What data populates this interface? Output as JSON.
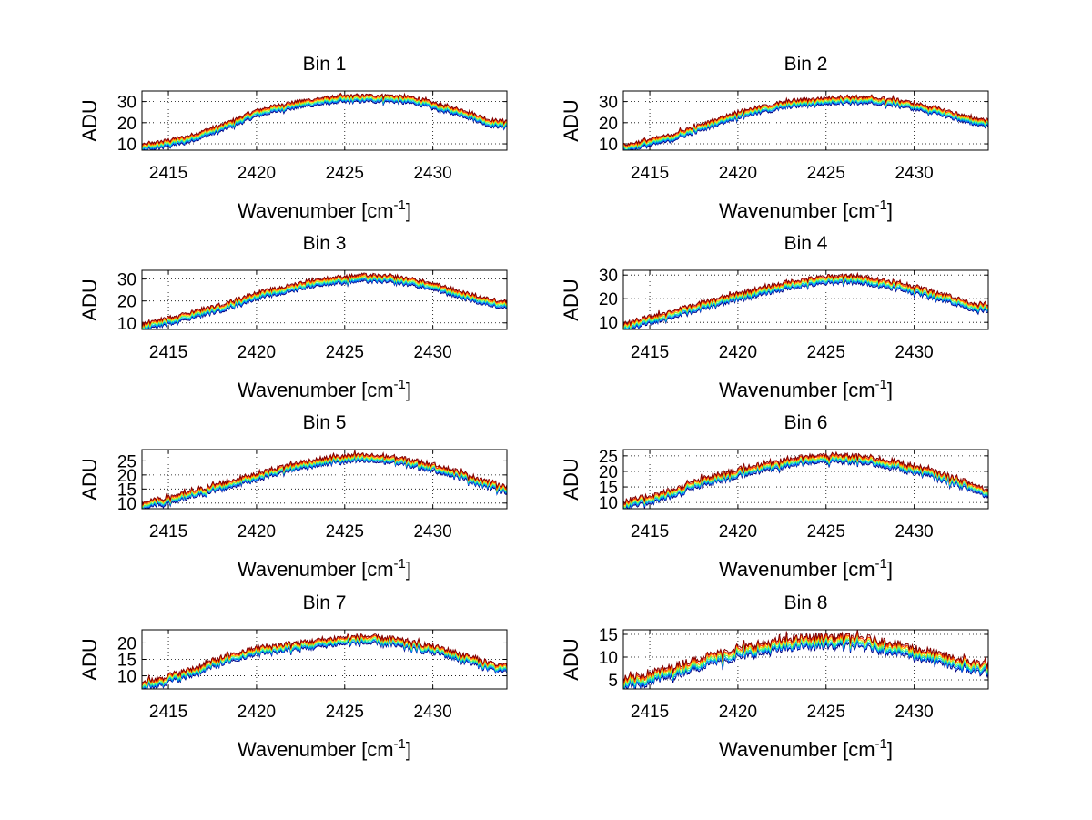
{
  "figure": {
    "background": "#ffffff",
    "series_colors": [
      "#000080",
      "#0066ff",
      "#00cccc",
      "#66ff66",
      "#ffcc00",
      "#ff3300",
      "#800000"
    ]
  },
  "chart_data": [
    {
      "type": "line",
      "title": "Bin 1",
      "xlabel": "Wavenumber [cm",
      "xlabel_sup": "-1",
      "xlabel_end": "]",
      "ylabel": "ADU",
      "xlim": [
        2413.5,
        2434.2
      ],
      "ylim": [
        7,
        35
      ],
      "xticks": [
        2415,
        2420,
        2425,
        2430
      ],
      "yticks": [
        10,
        20,
        30
      ],
      "grid": true,
      "profile": {
        "x": [
          2413.5,
          2416,
          2418,
          2420,
          2421.5,
          2423,
          2424.5,
          2426,
          2427.5,
          2429,
          2430.5,
          2432,
          2433.2,
          2434.2
        ],
        "y": [
          8,
          12,
          17.5,
          24.5,
          27.5,
          29.5,
          31,
          31.5,
          31.5,
          30.5,
          27,
          24,
          20,
          19.5
        ]
      },
      "series_offsets": [
        -1.6,
        -1.1,
        -0.6,
        0,
        0.5,
        1.0,
        1.5
      ]
    },
    {
      "type": "line",
      "title": "Bin 2",
      "xlabel": "Wavenumber [cm",
      "xlabel_sup": "-1",
      "xlabel_end": "]",
      "ylabel": "ADU",
      "xlim": [
        2413.5,
        2434.2
      ],
      "ylim": [
        7,
        35
      ],
      "xticks": [
        2415,
        2420,
        2425,
        2430
      ],
      "yticks": [
        10,
        20,
        30
      ],
      "grid": true,
      "profile": {
        "x": [
          2413.5,
          2416,
          2418,
          2420,
          2421.5,
          2423,
          2424.5,
          2426,
          2427.5,
          2429,
          2430.5,
          2432,
          2433.2,
          2434.2
        ],
        "y": [
          8,
          12.5,
          18,
          24,
          26.5,
          29,
          30,
          31,
          30.5,
          29.5,
          27,
          24,
          21,
          20
        ]
      },
      "series_offsets": [
        -1.6,
        -1.1,
        -0.6,
        0,
        0.5,
        1.0,
        1.5
      ]
    },
    {
      "type": "line",
      "title": "Bin 3",
      "xlabel": "Wavenumber [cm",
      "xlabel_sup": "-1",
      "xlabel_end": "]",
      "ylabel": "ADU",
      "xlim": [
        2413.5,
        2434.2
      ],
      "ylim": [
        7,
        34
      ],
      "xticks": [
        2415,
        2420,
        2425,
        2430
      ],
      "yticks": [
        10,
        20,
        30
      ],
      "grid": true,
      "profile": {
        "x": [
          2413.5,
          2416,
          2418,
          2420,
          2421.5,
          2423,
          2424.5,
          2426,
          2427.5,
          2429,
          2430.5,
          2432,
          2433.2,
          2434.2
        ],
        "y": [
          8,
          13,
          17,
          22.5,
          25,
          28,
          29.5,
          30.5,
          30,
          28.5,
          25.5,
          22,
          19.5,
          18.5
        ]
      },
      "series_offsets": [
        -1.6,
        -1.1,
        -0.6,
        0,
        0.5,
        1.0,
        1.5
      ]
    },
    {
      "type": "line",
      "title": "Bin 4",
      "xlabel": "Wavenumber [cm",
      "xlabel_sup": "-1",
      "xlabel_end": "]",
      "ylabel": "ADU",
      "xlim": [
        2413.5,
        2434.2
      ],
      "ylim": [
        7,
        32
      ],
      "xticks": [
        2415,
        2420,
        2425,
        2430
      ],
      "yticks": [
        10,
        20,
        30
      ],
      "grid": true,
      "profile": {
        "x": [
          2413.5,
          2416,
          2418,
          2420,
          2421.5,
          2423,
          2424.5,
          2426,
          2427.5,
          2429,
          2430.5,
          2432,
          2433.2,
          2434.2
        ],
        "y": [
          8,
          13,
          17,
          21,
          23.5,
          26,
          27.5,
          28.5,
          27.5,
          25.5,
          23,
          20,
          17,
          16
        ]
      },
      "series_offsets": [
        -1.6,
        -1.1,
        -0.6,
        0,
        0.5,
        1.0,
        1.5
      ]
    },
    {
      "type": "line",
      "title": "Bin 5",
      "xlabel": "Wavenumber [cm",
      "xlabel_sup": "-1",
      "xlabel_end": "]",
      "ylabel": "ADU",
      "xlim": [
        2413.5,
        2434.2
      ],
      "ylim": [
        8,
        29
      ],
      "xticks": [
        2415,
        2420,
        2425,
        2430
      ],
      "yticks": [
        10,
        15,
        20,
        25
      ],
      "grid": true,
      "profile": {
        "x": [
          2413.5,
          2416,
          2418,
          2420,
          2421.5,
          2423,
          2424.5,
          2426,
          2427.5,
          2429,
          2430.5,
          2432,
          2433.2,
          2434.2
        ],
        "y": [
          9,
          12.5,
          16,
          19.5,
          22,
          24,
          25.5,
          26,
          25.5,
          24,
          22,
          19,
          16.5,
          15
        ]
      },
      "series_offsets": [
        -1.2,
        -0.8,
        -0.4,
        0,
        0.4,
        0.8,
        1.2
      ]
    },
    {
      "type": "line",
      "title": "Bin 6",
      "xlabel": "Wavenumber [cm",
      "xlabel_sup": "-1",
      "xlabel_end": "]",
      "ylabel": "ADU",
      "xlim": [
        2413.5,
        2434.2
      ],
      "ylim": [
        8,
        27
      ],
      "xticks": [
        2415,
        2420,
        2425,
        2430
      ],
      "yticks": [
        10,
        15,
        20,
        25
      ],
      "grid": true,
      "profile": {
        "x": [
          2413.5,
          2416,
          2418,
          2420,
          2421.5,
          2423,
          2424.5,
          2426,
          2427.5,
          2429,
          2430.5,
          2432,
          2433.2,
          2434.2
        ],
        "y": [
          9,
          12.5,
          16.5,
          19.5,
          21.5,
          23,
          24,
          24,
          23.5,
          22,
          20,
          17.5,
          15,
          13
        ]
      },
      "series_offsets": [
        -1.2,
        -0.8,
        -0.4,
        0,
        0.4,
        0.8,
        1.2
      ]
    },
    {
      "type": "line",
      "title": "Bin 7",
      "xlabel": "Wavenumber [cm",
      "xlabel_sup": "-1",
      "xlabel_end": "]",
      "ylabel": "ADU",
      "xlim": [
        2413.5,
        2434.2
      ],
      "ylim": [
        6,
        24
      ],
      "xticks": [
        2415,
        2420,
        2425,
        2430
      ],
      "yticks": [
        10,
        15,
        20
      ],
      "grid": true,
      "profile": {
        "x": [
          2413.5,
          2416,
          2418,
          2420,
          2421.5,
          2423,
          2424.5,
          2426,
          2427.5,
          2429,
          2430.5,
          2432,
          2433.2,
          2434.2
        ],
        "y": [
          7,
          10.5,
          14.5,
          17.5,
          18.5,
          19.5,
          20.5,
          21,
          20.5,
          19,
          17.5,
          15,
          13,
          12
        ]
      },
      "series_offsets": [
        -1.1,
        -0.75,
        -0.4,
        0,
        0.4,
        0.75,
        1.1
      ]
    },
    {
      "type": "line",
      "title": "Bin 8",
      "xlabel": "Wavenumber [cm",
      "xlabel_sup": "-1",
      "xlabel_end": "]",
      "ylabel": "ADU",
      "xlim": [
        2413.5,
        2434.2
      ],
      "ylim": [
        3,
        16
      ],
      "xticks": [
        2415,
        2420,
        2425,
        2430
      ],
      "yticks": [
        5,
        10,
        15
      ],
      "grid": true,
      "profile": {
        "x": [
          2413.5,
          2416,
          2418,
          2420,
          2421.5,
          2423,
          2424.5,
          2426,
          2427.5,
          2429,
          2430.5,
          2432,
          2433.2,
          2434.2
        ],
        "y": [
          4,
          6.5,
          9,
          11,
          12,
          13,
          13.5,
          13.5,
          13,
          12,
          10.5,
          9,
          8,
          7.5
        ]
      },
      "series_offsets": [
        -1.1,
        -0.75,
        -0.4,
        0,
        0.4,
        0.75,
        1.1
      ]
    }
  ]
}
